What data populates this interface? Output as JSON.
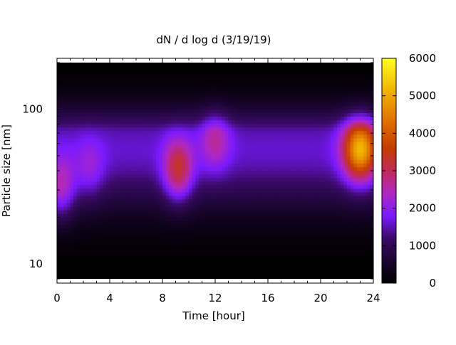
{
  "chart_data": {
    "type": "heatmap",
    "title": "dN / d log d (3/19/19)",
    "xlabel": "Time [hour]",
    "ylabel": "Particle size [nm]",
    "xlim": [
      0,
      24
    ],
    "ylim": [
      8,
      200
    ],
    "y_scale": "log",
    "x_ticks": [
      "0",
      "4",
      "8",
      "12",
      "16",
      "20",
      "24"
    ],
    "y_ticks": [
      "10",
      "100"
    ],
    "colorbar": {
      "range": [
        0,
        6000
      ],
      "ticks": [
        "0",
        "1000",
        "2000",
        "3000",
        "4000",
        "5000",
        "6000"
      ],
      "colormap": [
        "#000000",
        "#3a0a68",
        "#7a1aff",
        "#c12a8f",
        "#c43c00",
        "#e88f00",
        "#ffe600",
        "#ffff20"
      ]
    },
    "features": [
      {
        "time": 0.3,
        "size_nm": 30,
        "value": 3000
      },
      {
        "time": 2.5,
        "size_nm": 40,
        "value": 2300
      },
      {
        "time": 9.2,
        "size_nm": 40,
        "value": 3500
      },
      {
        "time": 12.0,
        "size_nm": 65,
        "value": 2700
      },
      {
        "time": 23.0,
        "size_nm": 55,
        "value": 5200
      }
    ],
    "grid": false
  }
}
